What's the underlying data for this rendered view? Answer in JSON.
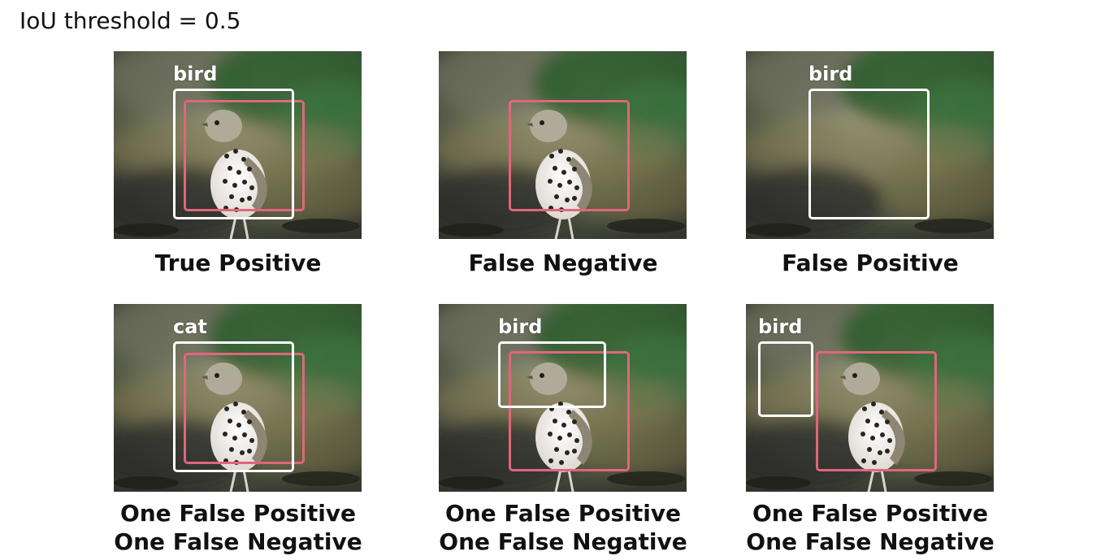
{
  "title": "IoU threshold = 0.5",
  "colors": {
    "ground_truth_box": "#e1667b",
    "prediction_box": "#ffffff"
  },
  "panels": [
    {
      "prediction_label": "bird",
      "caption_lines": [
        "True Positive"
      ],
      "has_bird": true,
      "has_ground_truth_box": true
    },
    {
      "prediction_label": "",
      "caption_lines": [
        "False Negative"
      ],
      "has_bird": true,
      "has_ground_truth_box": true
    },
    {
      "prediction_label": "bird",
      "caption_lines": [
        "False Positive"
      ],
      "has_bird": false,
      "has_ground_truth_box": false
    },
    {
      "prediction_label": "cat",
      "caption_lines": [
        "One False Positive",
        "One False Negative"
      ],
      "has_bird": true,
      "has_ground_truth_box": true
    },
    {
      "prediction_label": "bird",
      "caption_lines": [
        "One False Positive",
        "One False Negative"
      ],
      "has_bird": true,
      "has_ground_truth_box": true
    },
    {
      "prediction_label": "bird",
      "caption_lines": [
        "One False Positive",
        "One False Negative"
      ],
      "has_bird": true,
      "has_ground_truth_box": true
    }
  ]
}
